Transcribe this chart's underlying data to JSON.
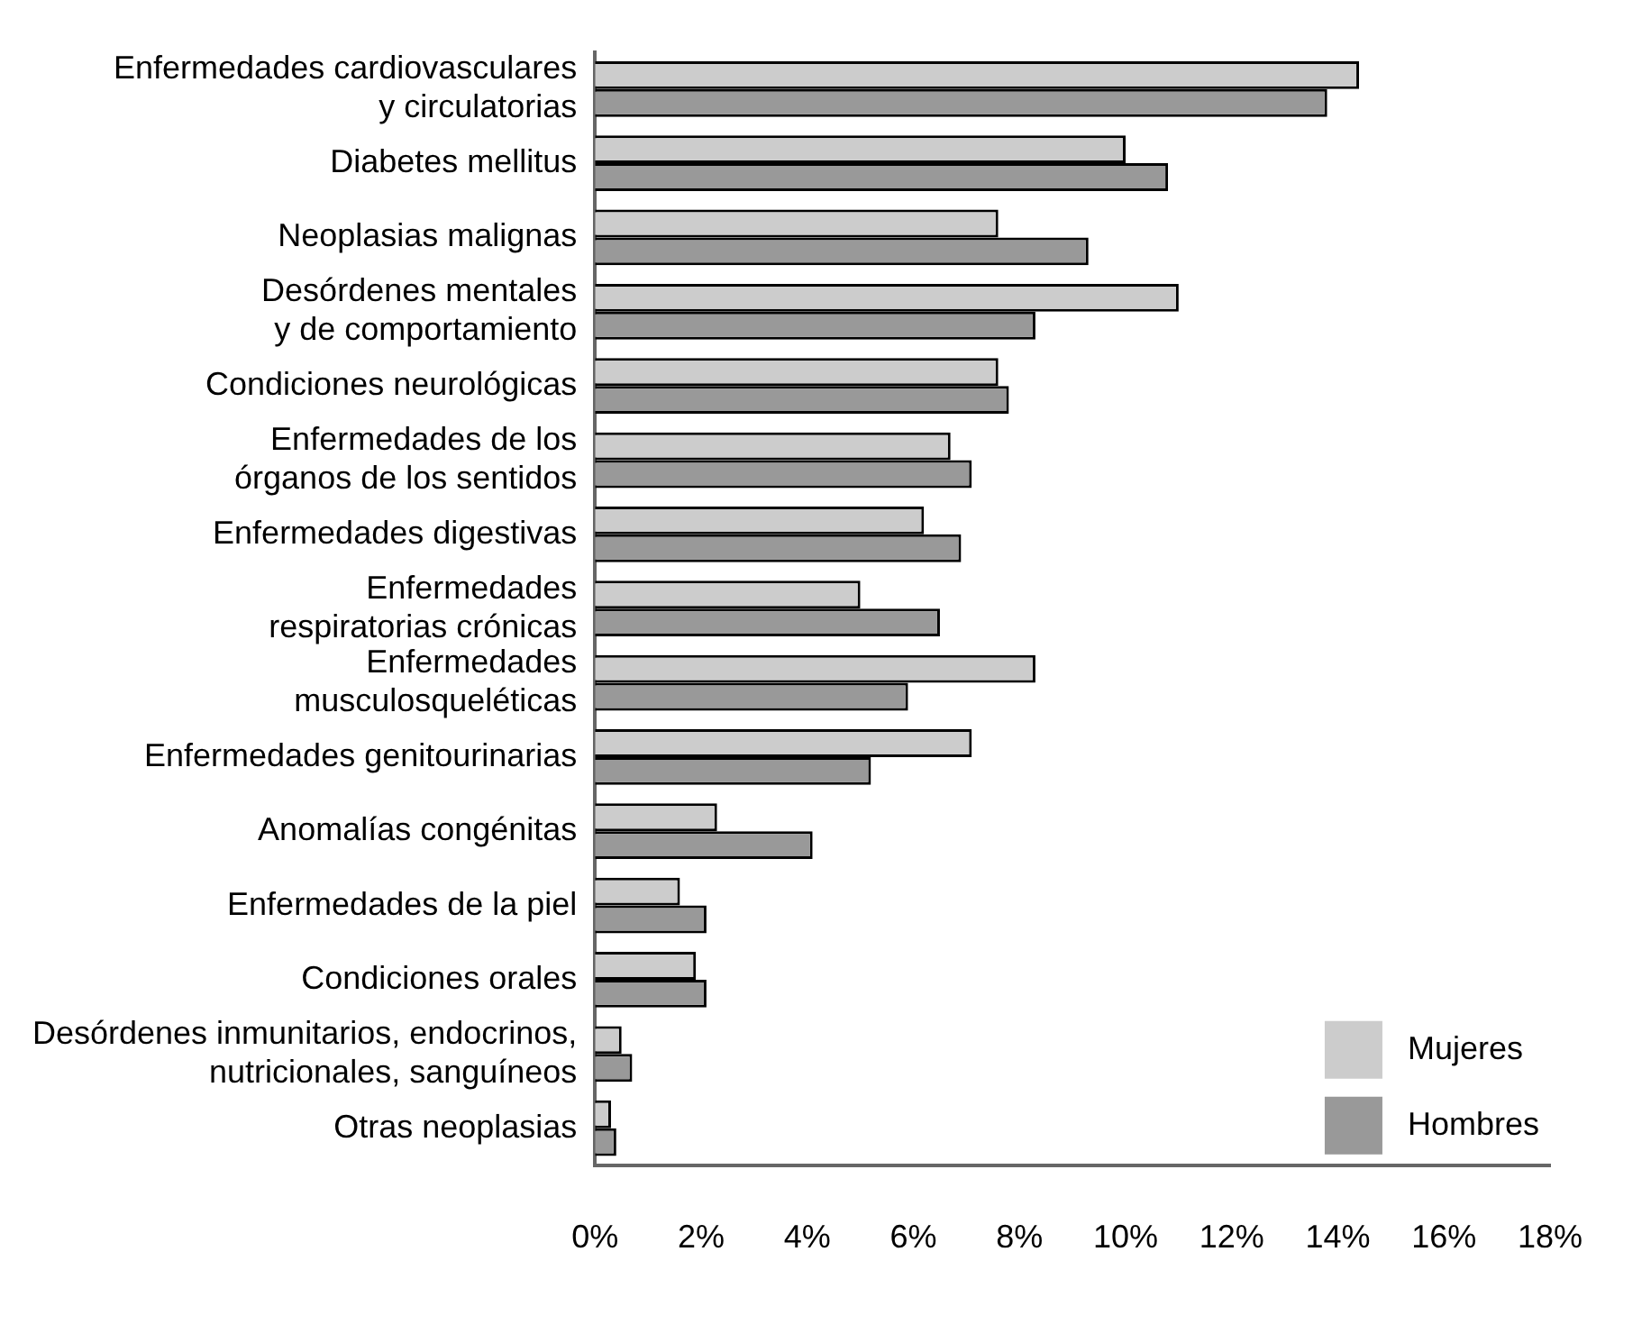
{
  "chart_data": {
    "type": "bar",
    "orientation": "horizontal",
    "categories": [
      "Enfermedades cardiovasculares y circulatorias",
      "Diabetes mellitus",
      "Neoplasias malignas",
      "Desórdenes mentales y de comportamiento",
      "Condiciones neurológicas",
      "Enfermedades de los órganos de los sentidos",
      "Enfermedades digestivas",
      "Enfermedades respiratorias crónicas",
      "Enfermedades musculosqueléticas",
      "Enfermedades genitourinarias",
      "Anomalías congénitas",
      "Enfermedades de la piel",
      "Condiciones orales",
      "Desórdenes inmunitarios, endocrinos, nutricionales, sanguíneos",
      "Otras neoplasias"
    ],
    "series": [
      {
        "name": "Mujeres",
        "color": "#cccccc",
        "values": [
          14.4,
          10.0,
          7.6,
          11.0,
          7.6,
          6.7,
          6.2,
          5.0,
          8.3,
          7.1,
          2.3,
          1.6,
          1.9,
          0.5,
          0.3
        ]
      },
      {
        "name": "Hombres",
        "color": "#999999",
        "values": [
          13.8,
          10.8,
          9.3,
          8.3,
          7.8,
          7.1,
          6.9,
          6.5,
          5.9,
          5.2,
          4.1,
          2.1,
          2.1,
          0.7,
          0.4
        ]
      }
    ],
    "xlim": [
      0,
      18
    ],
    "xticks": [
      {
        "value": 0,
        "label": "0%"
      },
      {
        "value": 2,
        "label": "2%"
      },
      {
        "value": 4,
        "label": "4%"
      },
      {
        "value": 6,
        "label": "6%"
      },
      {
        "value": 8,
        "label": "8%"
      },
      {
        "value": 10,
        "label": "10%"
      },
      {
        "value": 12,
        "label": "12%"
      },
      {
        "value": 14,
        "label": "14%"
      },
      {
        "value": 16,
        "label": "16%"
      },
      {
        "value": 18,
        "label": "18%"
      }
    ],
    "grid": false,
    "legend": "bottom right"
  }
}
